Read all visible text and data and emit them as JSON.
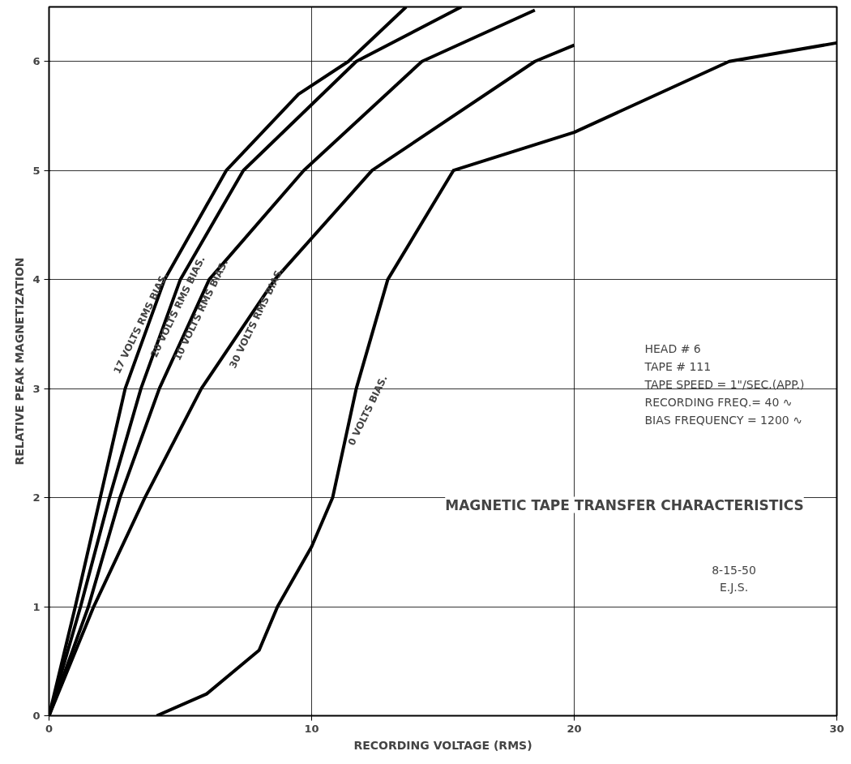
{
  "chart_data": {
    "type": "line",
    "title": "MAGNETIC TAPE TRANSFER CHARACTERISTICS",
    "xlabel": "RECORDING VOLTAGE (RMS)",
    "ylabel": "RELATIVE PEAK MAGNETIZATION",
    "xlim": [
      0,
      30
    ],
    "ylim": [
      0,
      6.5
    ],
    "xticks": [
      0,
      10,
      20,
      30
    ],
    "yticks": [
      0,
      1,
      2,
      3,
      4,
      5,
      6
    ],
    "grid": true,
    "marker": "none",
    "line_style": "solid",
    "series": [
      {
        "name": "17 VOLTS RMS BIAS.",
        "color": "#000000",
        "x": [
          0,
          1.0,
          1.95,
          2.9,
          4.4,
          6.75,
          9.5,
          11.4,
          13.6
        ],
        "values": [
          0,
          1,
          2,
          3,
          4,
          5,
          5.7,
          6,
          6.5
        ]
      },
      {
        "name": "20 VOLTS RMS BIAS.",
        "color": "#000000",
        "x": [
          0,
          1.2,
          2.3,
          3.5,
          5.0,
          7.4,
          11.7,
          15.7
        ],
        "values": [
          0,
          1,
          2,
          3,
          4,
          5,
          6,
          6.5
        ]
      },
      {
        "name": "10 VOLTS RMS BIAS.",
        "color": "#000000",
        "x": [
          0,
          1.5,
          2.7,
          4.2,
          6.1,
          9.7,
          14.2,
          18.5
        ],
        "values": [
          0,
          1,
          2,
          3,
          4,
          5,
          6,
          6.47
        ]
      },
      {
        "name": "30 VOLTS RMS BIAS.",
        "color": "#000000",
        "x": [
          0,
          1.7,
          3.65,
          5.8,
          8.6,
          12.3,
          18.5,
          20.0
        ],
        "values": [
          0,
          1,
          2,
          3,
          4,
          5,
          6,
          6.15
        ]
      },
      {
        "name": "0 VOLTS BIAS.",
        "color": "#000000",
        "x": [
          4.1,
          6,
          8,
          8.7,
          10,
          10.8,
          11.7,
          12.9,
          15.4,
          20,
          25.9,
          30
        ],
        "values": [
          0,
          0.2,
          0.6,
          1,
          1.55,
          2,
          3,
          4,
          5,
          5.35,
          6,
          6.17
        ]
      }
    ],
    "annotations": [
      "HEAD # 6",
      "TAPE # 111",
      "TAPE SPEED = 1\"/SEC.(APP.)",
      "RECORDING FREQ.= 40 ∿",
      "BIAS FREQUENCY = 1200 ∿",
      "8-15-50",
      "E.J.S."
    ]
  }
}
